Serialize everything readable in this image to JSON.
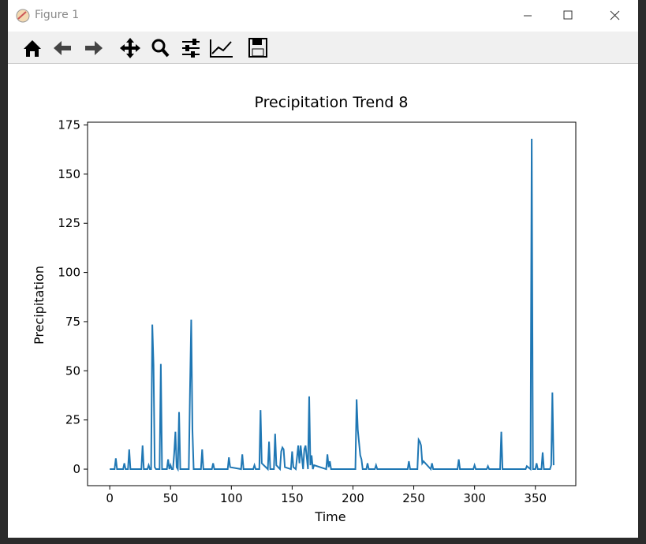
{
  "window_title": "Figure 1",
  "chart_data": {
    "type": "line",
    "title": "Precipitation Trend 8",
    "x_label": "Time",
    "y_label": "Precipitation",
    "series": [
      {
        "color": "#1f77b4",
        "x": [
          0,
          4,
          5,
          6,
          11,
          12,
          13,
          15,
          16,
          17,
          26,
          27,
          28,
          31,
          32,
          33,
          34,
          35,
          36,
          37,
          38,
          41,
          42,
          43,
          47,
          48,
          49,
          50,
          51,
          52,
          53,
          54,
          55,
          56,
          57,
          58,
          65,
          66,
          67,
          68,
          69,
          75,
          76,
          77,
          84,
          85,
          86,
          97,
          98,
          99,
          108,
          109,
          110,
          118,
          119,
          120,
          123,
          124,
          125,
          130,
          131,
          132,
          135,
          136,
          137,
          140,
          141,
          142,
          143,
          144,
          149,
          150,
          151,
          153,
          155,
          156,
          157,
          159,
          160,
          161,
          163,
          164,
          165,
          166,
          167,
          168,
          178,
          179,
          180,
          181,
          182,
          183,
          202,
          203,
          204,
          206,
          207,
          208,
          211,
          212,
          213,
          218,
          219,
          220,
          245,
          246,
          247,
          253,
          254,
          255,
          256,
          257,
          258,
          264,
          265,
          266,
          286,
          287,
          288,
          299,
          300,
          301,
          310,
          311,
          312,
          321,
          322,
          323,
          342,
          343,
          346,
          347,
          348,
          350,
          351,
          352,
          355,
          356,
          357,
          362,
          363,
          364,
          365
        ],
        "values": [
          0,
          0,
          5.5,
          0,
          0,
          3,
          0,
          0,
          10,
          0,
          0,
          12,
          0,
          0,
          2,
          0,
          0,
          73.5,
          53,
          1,
          0,
          0,
          53.5,
          0,
          0,
          5,
          0,
          2,
          0,
          0,
          8,
          19,
          1,
          0,
          29,
          0,
          0,
          40,
          76,
          20,
          0,
          0,
          10,
          0,
          0,
          3,
          0,
          0,
          6,
          1,
          0,
          7.5,
          0,
          0,
          2,
          0,
          0,
          30,
          3,
          0,
          14,
          0,
          0,
          18,
          2,
          0,
          9,
          11,
          10,
          1,
          0,
          9,
          1,
          0,
          12,
          3,
          12,
          0,
          10,
          12,
          0,
          37,
          2,
          7,
          0,
          2,
          0,
          7.5,
          1,
          4,
          0,
          0,
          0,
          35.5,
          20,
          7,
          5,
          0,
          0,
          3,
          0,
          0,
          2,
          0,
          0,
          4,
          0,
          0,
          15,
          14,
          12,
          3,
          4,
          0,
          3,
          0,
          0,
          5,
          0,
          0,
          2,
          0,
          0,
          1.5,
          0,
          0,
          19,
          0,
          0,
          1.5,
          0,
          168,
          0,
          0,
          3,
          0,
          0,
          8.5,
          0,
          0,
          2,
          39,
          2
        ]
      }
    ],
    "xlim": [
      -18.25,
      383.25
    ],
    "ylim": [
      -8.4,
      176.4
    ],
    "xticks": [
      0,
      50,
      100,
      150,
      200,
      250,
      300,
      350
    ],
    "yticks": [
      0,
      25,
      50,
      75,
      100,
      125,
      150,
      175
    ]
  }
}
